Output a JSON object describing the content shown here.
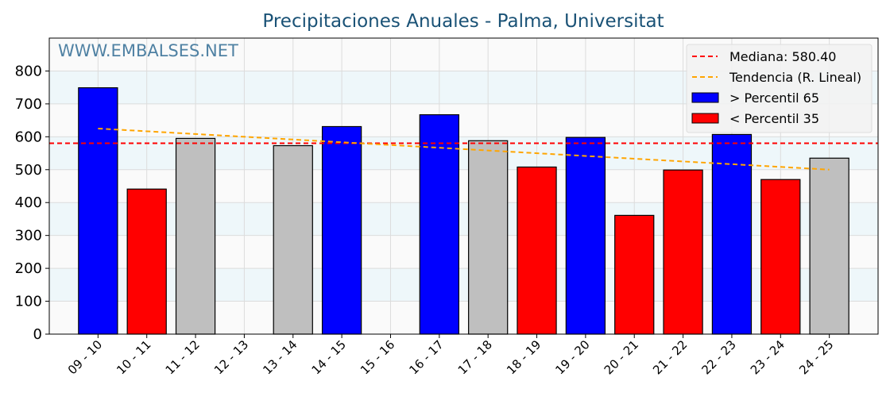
{
  "chart_data": {
    "type": "bar",
    "title": "Precipitaciones Anuales - Palma, Universitat",
    "watermark": "WWW.EMBALSES.NET",
    "xlabel": "",
    "ylabel": "",
    "ylim": [
      0,
      900
    ],
    "yticks": [
      0,
      100,
      200,
      300,
      400,
      500,
      600,
      700,
      800
    ],
    "categories": [
      "09 - 10",
      "10 - 11",
      "11 - 12",
      "12 - 13",
      "13 - 14",
      "14 - 15",
      "15 - 16",
      "16 - 17",
      "17 - 18",
      "18 - 19",
      "19 - 20",
      "20 - 21",
      "21 - 22",
      "22 - 23",
      "23 - 24",
      "24 - 25"
    ],
    "values": [
      749,
      441,
      595,
      0,
      573,
      631,
      0,
      667,
      588,
      508,
      598,
      361,
      499,
      607,
      470,
      535
    ],
    "classes": [
      "high",
      "low",
      "mid",
      "none",
      "mid",
      "high",
      "none",
      "high",
      "mid",
      "low",
      "high",
      "low",
      "low",
      "high",
      "low",
      "mid"
    ],
    "colors": {
      "high": "#0000ff",
      "low": "#ff0000",
      "mid": "#bfbfbf",
      "median": "#ff0000",
      "trend": "#ffa500",
      "title": "#1a5276",
      "watermark": "#4f81a3"
    },
    "median": 580.4,
    "trend": {
      "start": 625,
      "end": 500
    },
    "legend": {
      "position": "top-right",
      "entries": [
        {
          "label": "Mediana: 580.40",
          "kind": "median"
        },
        {
          "label": "Tendencia (R. Lineal)",
          "kind": "trend"
        },
        {
          "label": " > Percentil 65",
          "kind": "high"
        },
        {
          "label": " < Percentil 35",
          "kind": "low"
        }
      ]
    },
    "grid": true
  }
}
